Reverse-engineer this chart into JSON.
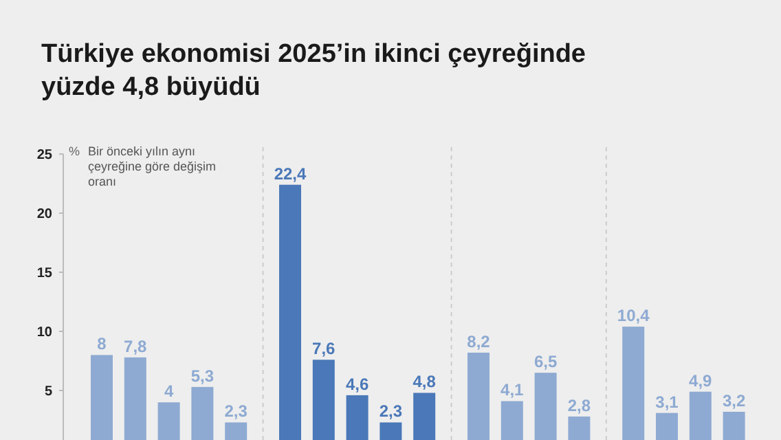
{
  "chart_data": {
    "type": "bar",
    "title": "Türkiye ekonomisi 2025’in ikinci çeyreğinde yüzde 4,8 büyüdü",
    "ylabel": "%",
    "annotations": [
      "Bir önceki yılın aynı çeyreğine göre değişim oranı"
    ],
    "categories": [
      null,
      null,
      null,
      null,
      null,
      null,
      null,
      null,
      null,
      null,
      null,
      null,
      null,
      null,
      null,
      null,
      null,
      null
    ],
    "values": [
      8,
      7.8,
      4,
      5.3,
      2.3,
      22.4,
      7.6,
      4.6,
      2.3,
      4.8,
      8.2,
      4.1,
      6.5,
      2.8,
      10.4,
      3.1,
      4.9,
      3.2
    ],
    "value_labels": [
      "8",
      "7,8",
      "4",
      "5,3",
      "2,3",
      "22,4",
      "7,6",
      "4,6",
      "2,3",
      "4,8",
      "8,2",
      "4,1",
      "6,5",
      "2,8",
      "10,4",
      "3,1",
      "4,9",
      "3,2"
    ],
    "colors": [
      "#8eaad2",
      "#8eaad2",
      "#8eaad2",
      "#8eaad2",
      "#8eaad2",
      "#4a78b8",
      "#4a78b8",
      "#4a78b8",
      "#4a78b8",
      "#4a78b8",
      "#8eaad2",
      "#8eaad2",
      "#8eaad2",
      "#8eaad2",
      "#8eaad2",
      "#8eaad2",
      "#8eaad2",
      "#8eaad2"
    ],
    "ylim": [
      0,
      25
    ],
    "yticks": [
      5,
      10,
      15,
      20,
      25
    ]
  }
}
